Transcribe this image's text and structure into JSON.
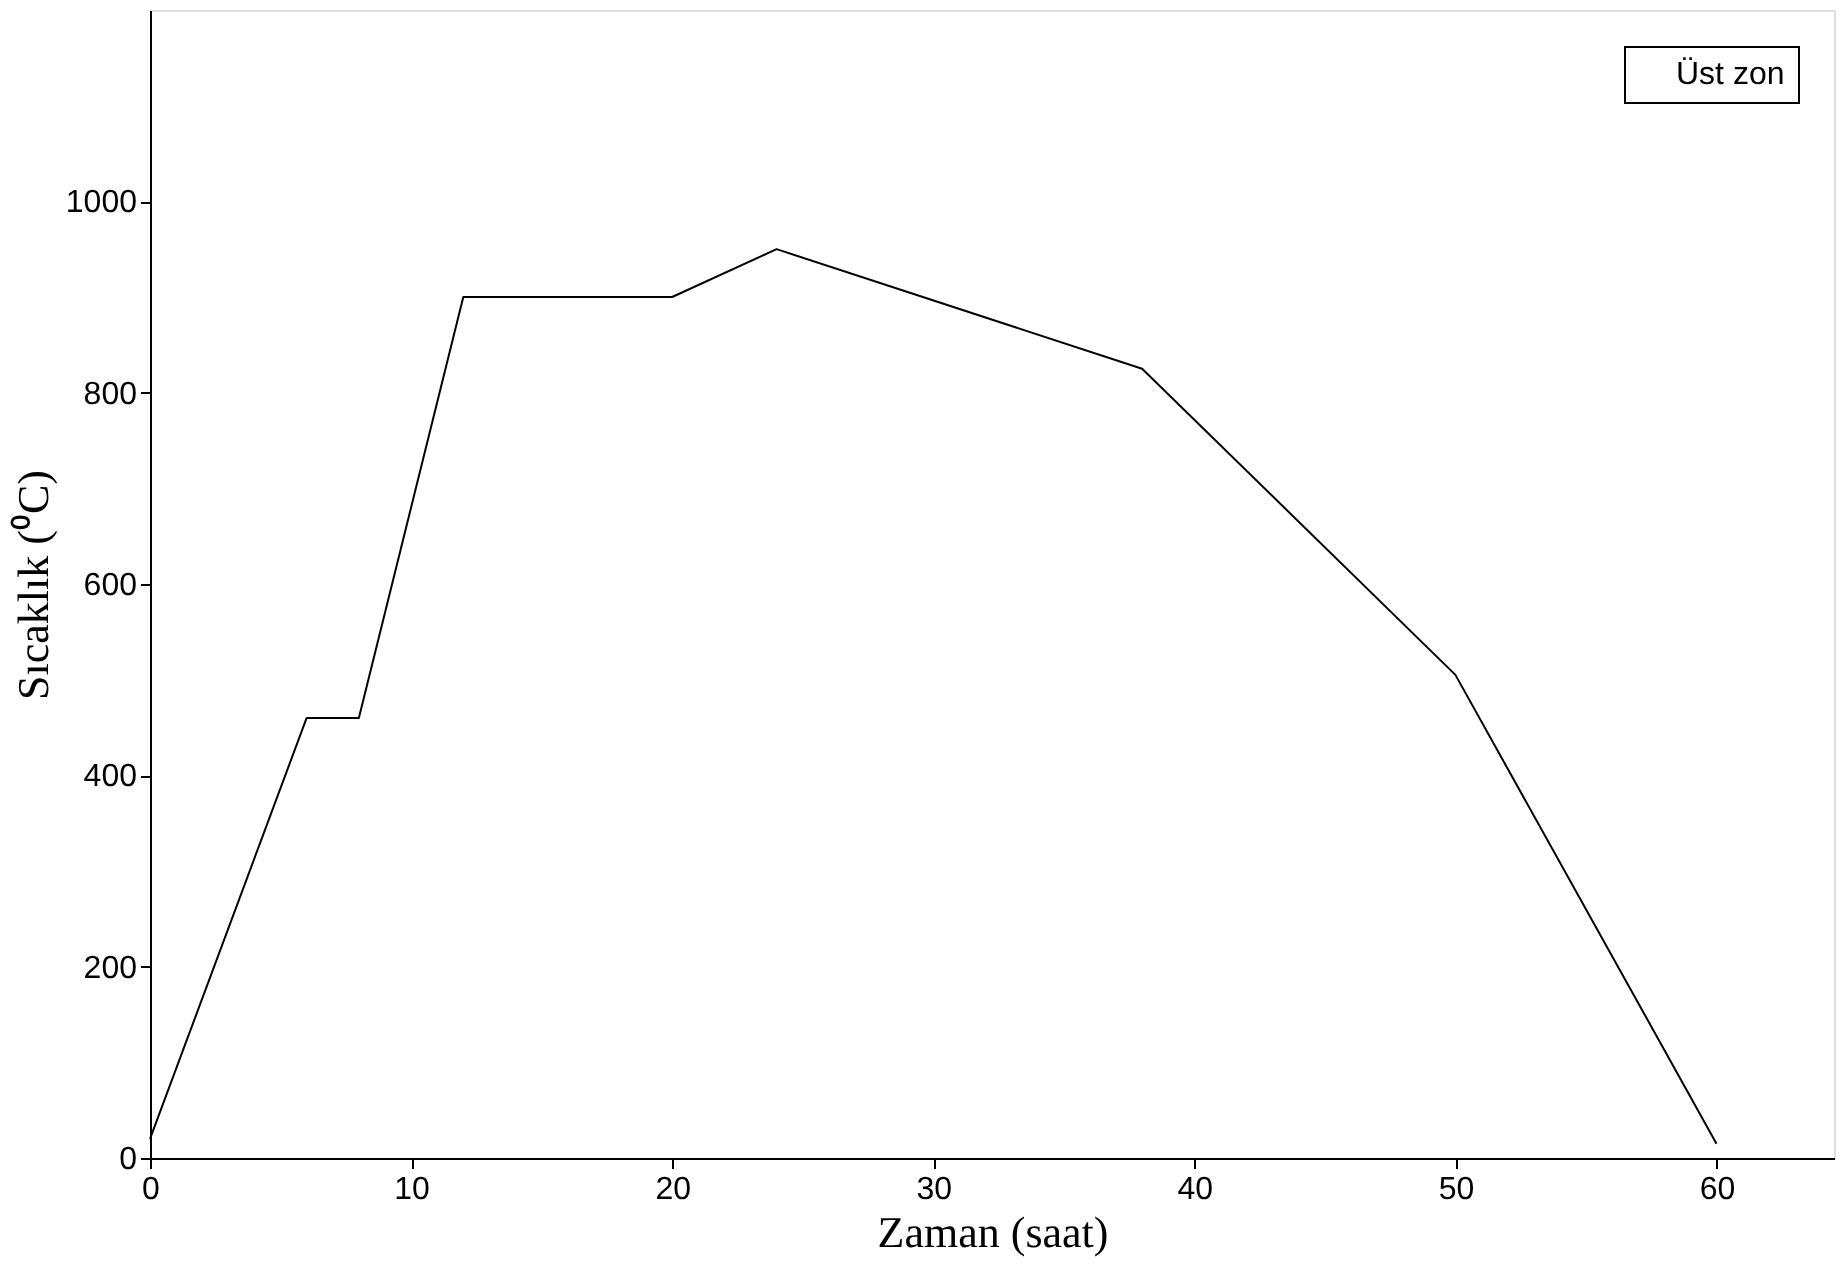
{
  "chart_data": {
    "type": "line",
    "xlabel": "Zaman (saat)",
    "ylabel": "Sıcaklık (⁰C)",
    "x": [
      0,
      6,
      8,
      12,
      20,
      24,
      38,
      50,
      60
    ],
    "series": [
      {
        "name": "Üst zon",
        "color": "#000000",
        "values": [
          20,
          460,
          460,
          900,
          900,
          950,
          825,
          505,
          15
        ]
      }
    ],
    "xlim": [
      0,
      64.5
    ],
    "xticks": [
      0,
      10,
      20,
      30,
      40,
      50,
      60
    ],
    "ylim": [
      0,
      1200
    ],
    "yticks": [
      0,
      200,
      400,
      600,
      800,
      1000
    ],
    "grid": false,
    "legend": "top right",
    "marker": "none",
    "line_style": "solid"
  }
}
